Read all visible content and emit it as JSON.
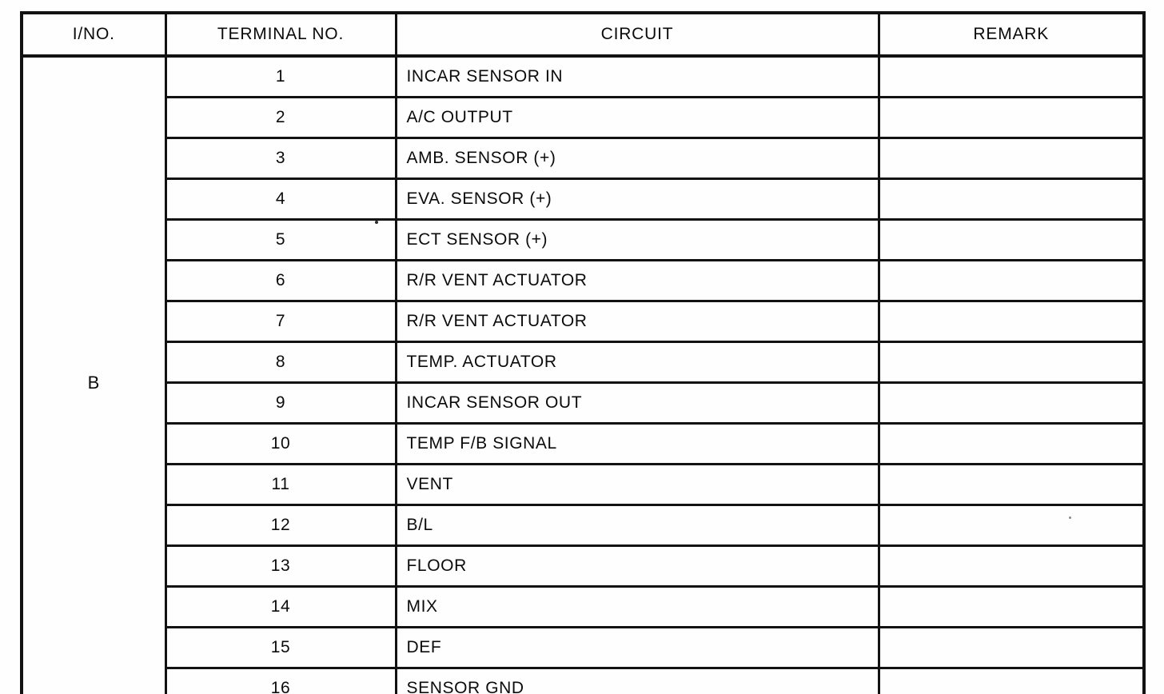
{
  "document": {
    "kind": "connector-pinout-table",
    "connector_id": "B"
  },
  "table": {
    "headers": {
      "ino": "I/NO.",
      "terminal": "TERMINAL NO.",
      "circuit": "CIRCUIT",
      "remark": "REMARK"
    },
    "group_label": "B",
    "rows": [
      {
        "terminal": "1",
        "circuit": "INCAR SENSOR IN",
        "remark": ""
      },
      {
        "terminal": "2",
        "circuit": "A/C OUTPUT",
        "remark": ""
      },
      {
        "terminal": "3",
        "circuit": "AMB. SENSOR (+)",
        "remark": ""
      },
      {
        "terminal": "4",
        "circuit": "EVA. SENSOR (+)",
        "remark": ""
      },
      {
        "terminal": "5",
        "circuit": "ECT SENSOR (+)",
        "remark": ""
      },
      {
        "terminal": "6",
        "circuit": "R/R VENT ACTUATOR",
        "remark": ""
      },
      {
        "terminal": "7",
        "circuit": "R/R VENT ACTUATOR",
        "remark": ""
      },
      {
        "terminal": "8",
        "circuit": "TEMP. ACTUATOR",
        "remark": ""
      },
      {
        "terminal": "9",
        "circuit": "INCAR SENSOR OUT",
        "remark": ""
      },
      {
        "terminal": "10",
        "circuit": "TEMP F/B SIGNAL",
        "remark": ""
      },
      {
        "terminal": "11",
        "circuit": "VENT",
        "remark": ""
      },
      {
        "terminal": "12",
        "circuit": "B/L",
        "remark": ""
      },
      {
        "terminal": "13",
        "circuit": "FLOOR",
        "remark": ""
      },
      {
        "terminal": "14",
        "circuit": "MIX",
        "remark": ""
      },
      {
        "terminal": "15",
        "circuit": "DEF",
        "remark": ""
      },
      {
        "terminal": "16",
        "circuit": "SENSOR GND",
        "remark": ""
      }
    ],
    "colors": {
      "ink": "#121212",
      "paper": "#fefefe"
    }
  }
}
